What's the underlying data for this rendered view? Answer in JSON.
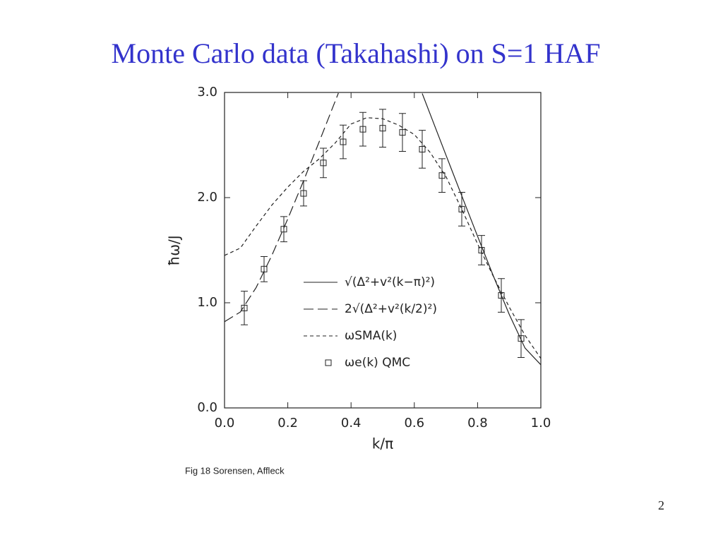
{
  "title": "Monte Carlo data (Takahashi) on S=1 HAF",
  "caption": "Fig 18 Sorensen, Affleck",
  "page_number": "2",
  "chart_data": {
    "type": "line",
    "x_label": "k/π",
    "y_label": "ħω/J",
    "xlim": [
      0,
      1
    ],
    "ylim": [
      0,
      3
    ],
    "xticks": [
      {
        "value": 0,
        "label": "0.0"
      },
      {
        "value": 0.2,
        "label": "0.2"
      },
      {
        "value": 0.4,
        "label": "0.4"
      },
      {
        "value": 0.6,
        "label": "0.6"
      },
      {
        "value": 0.8,
        "label": "0.8"
      },
      {
        "value": 1,
        "label": "1.0"
      }
    ],
    "yticks": [
      {
        "value": 0,
        "label": "0.0"
      },
      {
        "value": 1,
        "label": "1.0"
      },
      {
        "value": 2,
        "label": "2.0"
      },
      {
        "value": 3,
        "label": "3.0"
      }
    ],
    "series": [
      {
        "name": "√(Δ²+v²(k−π)²)",
        "color": "#222222",
        "line_style": "solid",
        "x": [
          0.625,
          0.65,
          0.7,
          0.75,
          0.8,
          0.85,
          0.9,
          0.95,
          1.0
        ],
        "values": [
          2.99,
          2.795,
          2.405,
          2.017,
          1.632,
          1.254,
          0.89,
          0.569,
          0.41
        ]
      },
      {
        "name": "2√(Δ²+v²(k/2)²)",
        "color": "#222222",
        "line_style": "long-dash",
        "x": [
          0,
          0.05,
          0.1,
          0.15,
          0.2,
          0.25,
          0.3,
          0.35,
          0.36
        ],
        "values": [
          0.82,
          0.912,
          1.145,
          1.453,
          1.798,
          2.161,
          2.536,
          2.918,
          2.994
        ]
      },
      {
        "name": "ωSMA(k)",
        "color": "#222222",
        "line_style": "short-dash",
        "x": [
          0,
          0.05,
          0.1,
          0.15,
          0.2,
          0.25,
          0.3,
          0.35,
          0.4,
          0.45,
          0.5,
          0.55,
          0.6,
          0.65,
          0.7,
          0.75,
          0.8,
          0.85,
          0.9,
          0.95,
          1.0
        ],
        "values": [
          1.45,
          1.52,
          1.73,
          1.93,
          2.1,
          2.25,
          2.37,
          2.52,
          2.7,
          2.76,
          2.75,
          2.69,
          2.6,
          2.43,
          2.2,
          1.89,
          1.56,
          1.25,
          0.96,
          0.69,
          0.47
        ]
      },
      {
        "name": "ωe(k) QMC",
        "color": "#222222",
        "line_style": "markers",
        "x": [
          0.0625,
          0.125,
          0.1875,
          0.25,
          0.3125,
          0.375,
          0.4375,
          0.5,
          0.5625,
          0.625,
          0.6875,
          0.75,
          0.8125,
          0.875,
          0.9375
        ],
        "values": [
          0.95,
          1.32,
          1.7,
          2.04,
          2.33,
          2.53,
          2.65,
          2.66,
          2.62,
          2.46,
          2.21,
          1.89,
          1.5,
          1.07,
          0.66
        ],
        "errors": [
          0.16,
          0.12,
          0.12,
          0.12,
          0.14,
          0.16,
          0.16,
          0.18,
          0.18,
          0.18,
          0.16,
          0.16,
          0.14,
          0.16,
          0.18
        ]
      }
    ]
  }
}
